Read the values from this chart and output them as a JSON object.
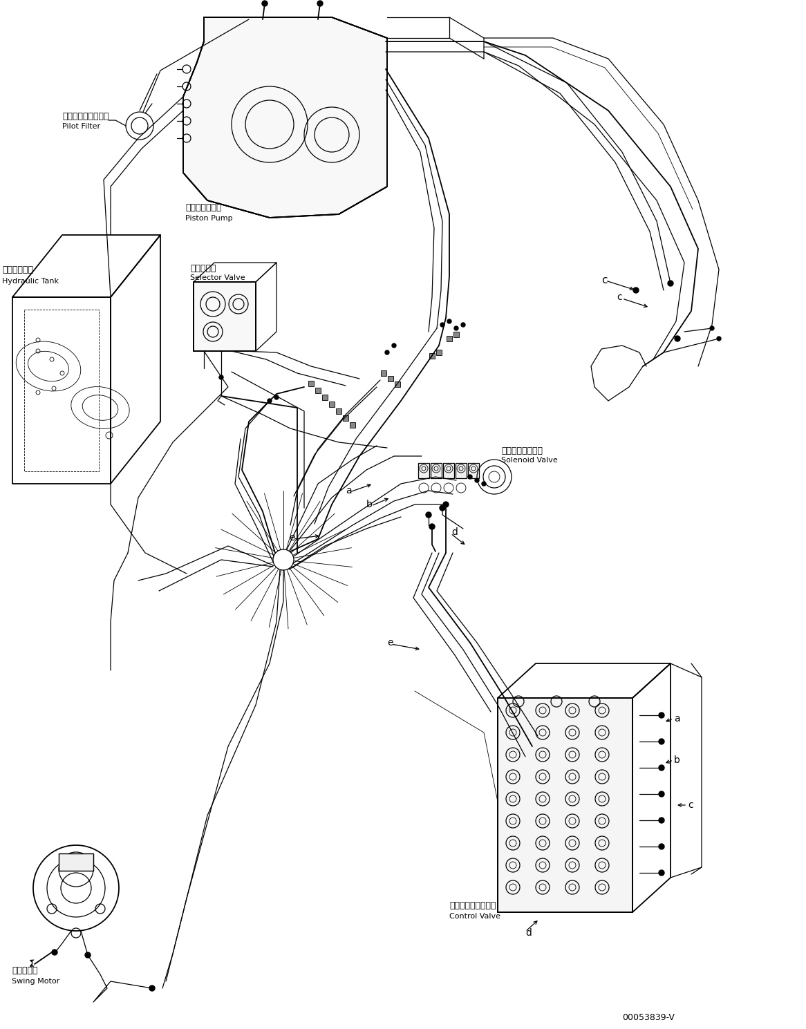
{
  "background_color": "#ffffff",
  "line_color": "#000000",
  "fig_width": 11.66,
  "fig_height": 14.89,
  "dpi": 100,
  "part_number": "00053839-V",
  "labels": {
    "pilot_filter_jp": "パイロットフィルタ",
    "pilot_filter_en": "Pilot Filter",
    "piston_pump_jp": "ピストンポンプ",
    "piston_pump_en": "Piston Pump",
    "selector_valve_jp": "切換バルブ",
    "selector_valve_en": "Selector Valve",
    "hydraulic_tank_jp": "作動油タンク",
    "hydraulic_tank_en": "Hydraulic Tank",
    "solenoid_valve_jp": "ソレノイドバルブ",
    "solenoid_valve_en": "Solenoid Valve",
    "control_valve_jp": "コントロールバルブ",
    "control_valve_en": "Control Valve",
    "swing_motor_jp": "旋回モータ",
    "swing_motor_en": "Swing Motor"
  }
}
